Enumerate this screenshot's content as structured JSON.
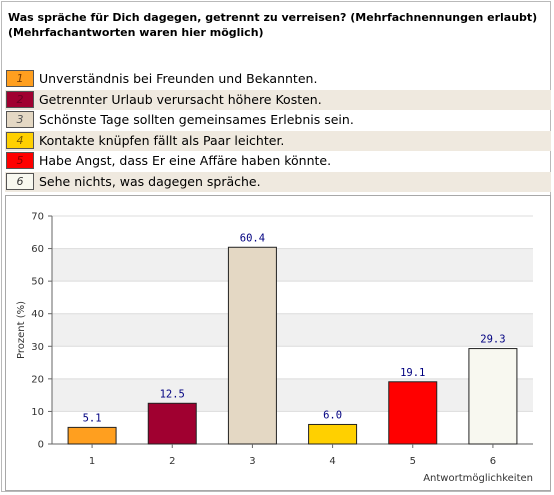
{
  "title": "Was spräche für Dich dagegen, getrennt zu verreisen? (Mehrfachnennungen erlaubt)",
  "subtitle": "(Mehrfachantworten waren hier möglich)",
  "legend": [
    {
      "num": "1",
      "label": "Unverständnis bei Freunden und Bekannten.",
      "color": "#ff9f1f",
      "text_color": "#7a3b00"
    },
    {
      "num": "2",
      "label": "Getrennter Urlaub verursacht höhere Kosten.",
      "color": "#a00030",
      "text_color": "#6a0020"
    },
    {
      "num": "3",
      "label": "Schönste Tage sollten gemeinsames Erlebnis sein.",
      "color": "#e4d8c4",
      "text_color": "#555555"
    },
    {
      "num": "4",
      "label": "Kontakte knüpfen fällt als Paar leichter.",
      "color": "#ffd000",
      "text_color": "#7a5a00"
    },
    {
      "num": "5",
      "label": "Habe Angst, dass Er eine Affäre haben könnte.",
      "color": "#ff0000",
      "text_color": "#8a0000"
    },
    {
      "num": "6",
      "label": "Sehe nichts, was dagegen spräche.",
      "color": "#f8f8f0",
      "text_color": "#333333"
    }
  ],
  "chart_data": {
    "type": "bar",
    "categories": [
      "1",
      "2",
      "3",
      "4",
      "5",
      "6"
    ],
    "values": [
      5.1,
      12.5,
      60.4,
      6.0,
      19.1,
      29.3
    ],
    "value_labels": [
      "5.1",
      "12.5",
      "60.4",
      "6.0",
      "19.1",
      "29.3"
    ],
    "colors": [
      "#ff9f1f",
      "#a00030",
      "#e4d8c4",
      "#ffd000",
      "#ff0000",
      "#f8f8f0"
    ],
    "xlabel": "Antwortmöglichkeiten",
    "ylabel": "Prozent (%)",
    "ylim": [
      0,
      70
    ],
    "yticks": [
      0,
      10,
      20,
      30,
      40,
      50,
      60,
      70
    ],
    "ytick_labels": [
      "0",
      "10",
      "20",
      "30",
      "40",
      "50",
      "60",
      "70"
    ],
    "grid": "alternating-bands"
  }
}
